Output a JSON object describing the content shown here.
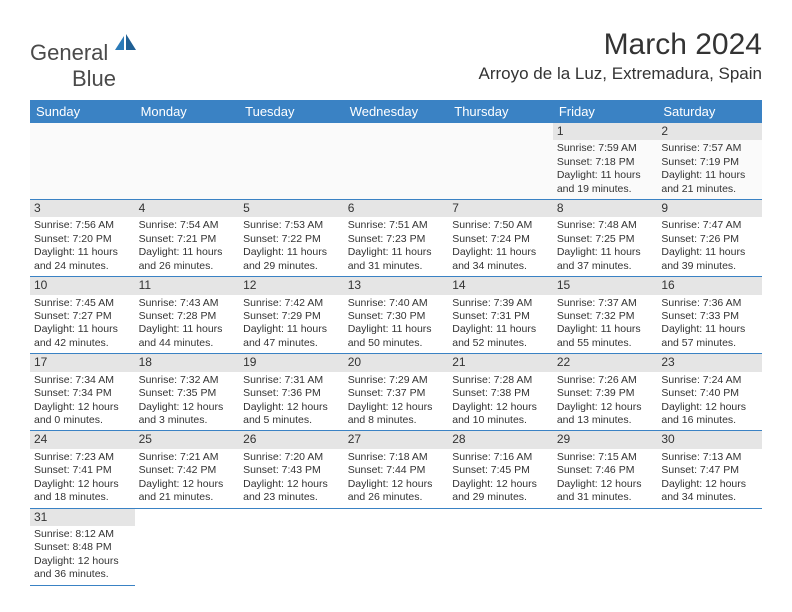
{
  "logo": {
    "word1": "General",
    "word2": "Blue"
  },
  "title": "March 2024",
  "location": "Arroyo de la Luz, Extremadura, Spain",
  "colors": {
    "header_bg": "#3a82c4",
    "header_text": "#ffffff",
    "daynum_bg": "#e5e5e5",
    "rule": "#3a82c4",
    "logo_gray": "#4a4a4a",
    "logo_blue": "#2a7ab8"
  },
  "weekdays": [
    "Sunday",
    "Monday",
    "Tuesday",
    "Wednesday",
    "Thursday",
    "Friday",
    "Saturday"
  ],
  "first_weekday_index": 5,
  "days": [
    {
      "n": 1,
      "sunrise": "7:59 AM",
      "sunset": "7:18 PM",
      "dl": "11 hours and 19 minutes."
    },
    {
      "n": 2,
      "sunrise": "7:57 AM",
      "sunset": "7:19 PM",
      "dl": "11 hours and 21 minutes."
    },
    {
      "n": 3,
      "sunrise": "7:56 AM",
      "sunset": "7:20 PM",
      "dl": "11 hours and 24 minutes."
    },
    {
      "n": 4,
      "sunrise": "7:54 AM",
      "sunset": "7:21 PM",
      "dl": "11 hours and 26 minutes."
    },
    {
      "n": 5,
      "sunrise": "7:53 AM",
      "sunset": "7:22 PM",
      "dl": "11 hours and 29 minutes."
    },
    {
      "n": 6,
      "sunrise": "7:51 AM",
      "sunset": "7:23 PM",
      "dl": "11 hours and 31 minutes."
    },
    {
      "n": 7,
      "sunrise": "7:50 AM",
      "sunset": "7:24 PM",
      "dl": "11 hours and 34 minutes."
    },
    {
      "n": 8,
      "sunrise": "7:48 AM",
      "sunset": "7:25 PM",
      "dl": "11 hours and 37 minutes."
    },
    {
      "n": 9,
      "sunrise": "7:47 AM",
      "sunset": "7:26 PM",
      "dl": "11 hours and 39 minutes."
    },
    {
      "n": 10,
      "sunrise": "7:45 AM",
      "sunset": "7:27 PM",
      "dl": "11 hours and 42 minutes."
    },
    {
      "n": 11,
      "sunrise": "7:43 AM",
      "sunset": "7:28 PM",
      "dl": "11 hours and 44 minutes."
    },
    {
      "n": 12,
      "sunrise": "7:42 AM",
      "sunset": "7:29 PM",
      "dl": "11 hours and 47 minutes."
    },
    {
      "n": 13,
      "sunrise": "7:40 AM",
      "sunset": "7:30 PM",
      "dl": "11 hours and 50 minutes."
    },
    {
      "n": 14,
      "sunrise": "7:39 AM",
      "sunset": "7:31 PM",
      "dl": "11 hours and 52 minutes."
    },
    {
      "n": 15,
      "sunrise": "7:37 AM",
      "sunset": "7:32 PM",
      "dl": "11 hours and 55 minutes."
    },
    {
      "n": 16,
      "sunrise": "7:36 AM",
      "sunset": "7:33 PM",
      "dl": "11 hours and 57 minutes."
    },
    {
      "n": 17,
      "sunrise": "7:34 AM",
      "sunset": "7:34 PM",
      "dl": "12 hours and 0 minutes."
    },
    {
      "n": 18,
      "sunrise": "7:32 AM",
      "sunset": "7:35 PM",
      "dl": "12 hours and 3 minutes."
    },
    {
      "n": 19,
      "sunrise": "7:31 AM",
      "sunset": "7:36 PM",
      "dl": "12 hours and 5 minutes."
    },
    {
      "n": 20,
      "sunrise": "7:29 AM",
      "sunset": "7:37 PM",
      "dl": "12 hours and 8 minutes."
    },
    {
      "n": 21,
      "sunrise": "7:28 AM",
      "sunset": "7:38 PM",
      "dl": "12 hours and 10 minutes."
    },
    {
      "n": 22,
      "sunrise": "7:26 AM",
      "sunset": "7:39 PM",
      "dl": "12 hours and 13 minutes."
    },
    {
      "n": 23,
      "sunrise": "7:24 AM",
      "sunset": "7:40 PM",
      "dl": "12 hours and 16 minutes."
    },
    {
      "n": 24,
      "sunrise": "7:23 AM",
      "sunset": "7:41 PM",
      "dl": "12 hours and 18 minutes."
    },
    {
      "n": 25,
      "sunrise": "7:21 AM",
      "sunset": "7:42 PM",
      "dl": "12 hours and 21 minutes."
    },
    {
      "n": 26,
      "sunrise": "7:20 AM",
      "sunset": "7:43 PM",
      "dl": "12 hours and 23 minutes."
    },
    {
      "n": 27,
      "sunrise": "7:18 AM",
      "sunset": "7:44 PM",
      "dl": "12 hours and 26 minutes."
    },
    {
      "n": 28,
      "sunrise": "7:16 AM",
      "sunset": "7:45 PM",
      "dl": "12 hours and 29 minutes."
    },
    {
      "n": 29,
      "sunrise": "7:15 AM",
      "sunset": "7:46 PM",
      "dl": "12 hours and 31 minutes."
    },
    {
      "n": 30,
      "sunrise": "7:13 AM",
      "sunset": "7:47 PM",
      "dl": "12 hours and 34 minutes."
    },
    {
      "n": 31,
      "sunrise": "8:12 AM",
      "sunset": "8:48 PM",
      "dl": "12 hours and 36 minutes."
    }
  ],
  "labels": {
    "sunrise": "Sunrise:",
    "sunset": "Sunset:",
    "daylight": "Daylight:"
  }
}
